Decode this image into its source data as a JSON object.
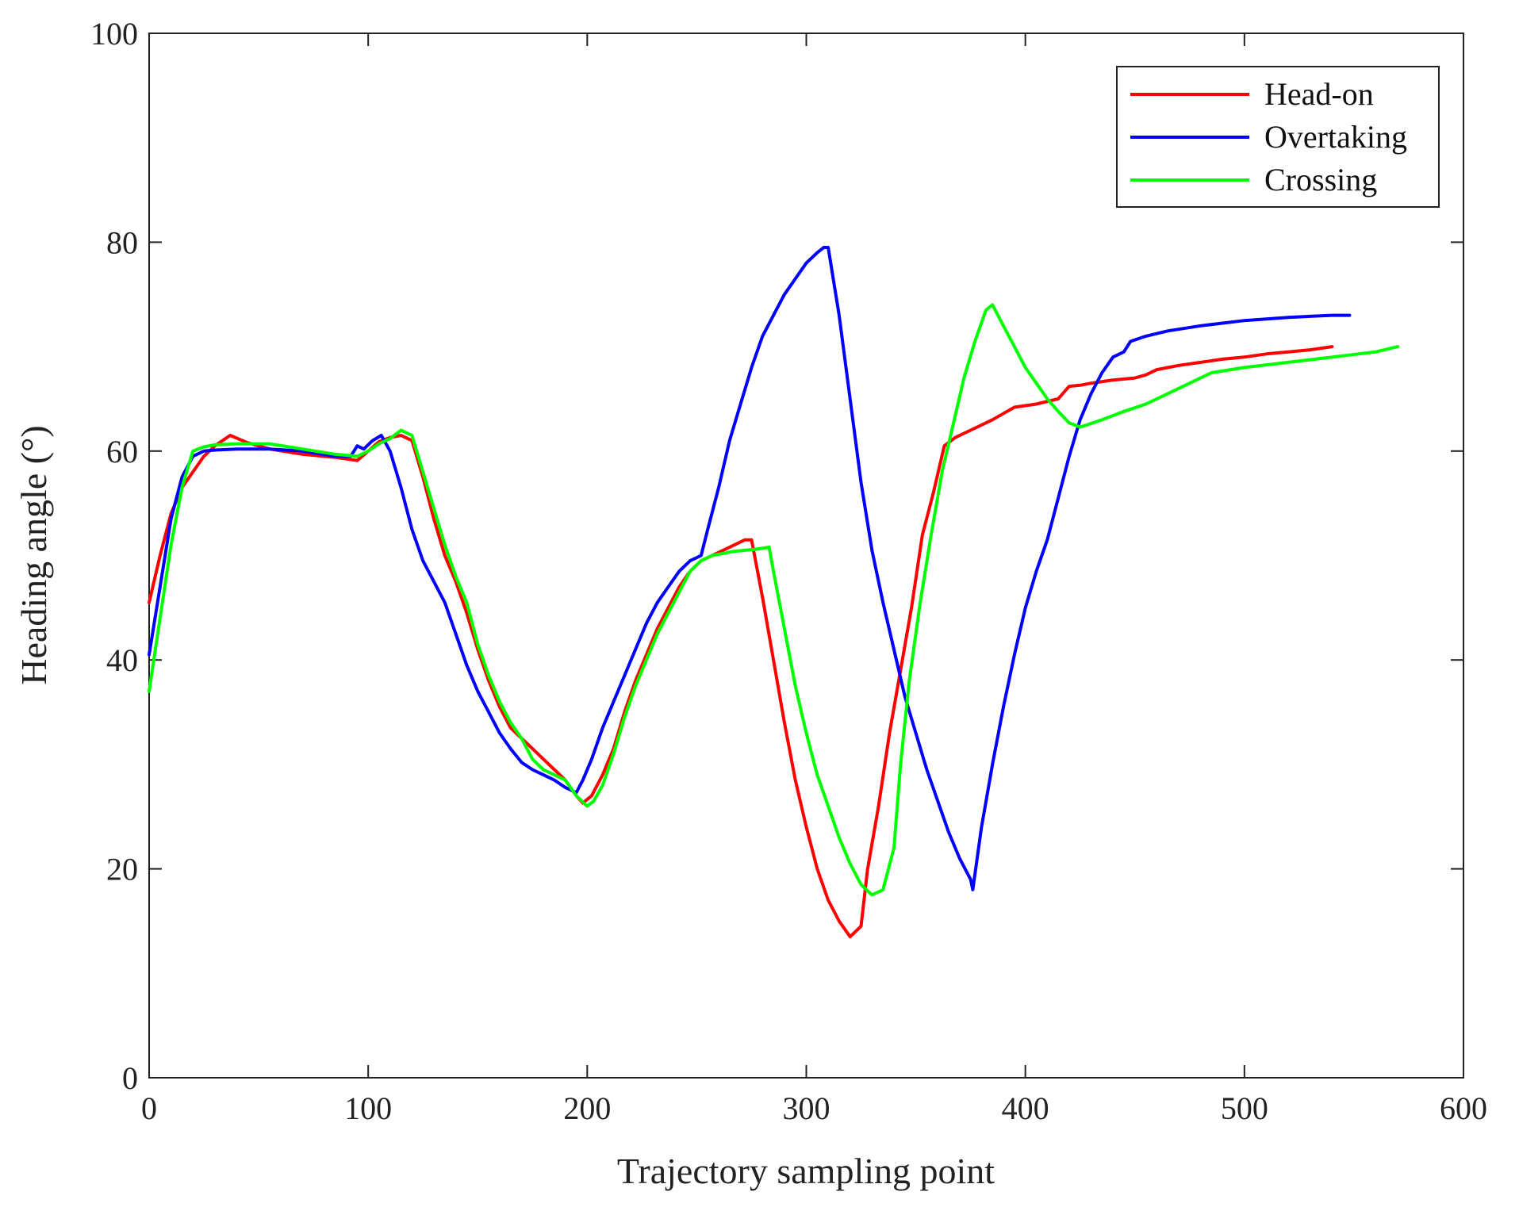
{
  "chart_data": {
    "type": "line",
    "title": "",
    "xlabel": "Trajectory sampling point",
    "ylabel": "Heading angle (°)",
    "xlim": [
      0,
      600
    ],
    "ylim": [
      0,
      100
    ],
    "xticks": [
      0,
      100,
      200,
      300,
      400,
      500,
      600
    ],
    "yticks": [
      0,
      20,
      40,
      60,
      80,
      100
    ],
    "xtick_labels": [
      "0",
      "100",
      "200",
      "300",
      "400",
      "500",
      "600"
    ],
    "ytick_labels": [
      "0",
      "20",
      "40",
      "60",
      "80",
      "100"
    ],
    "grid": false,
    "legend_position": "top-right",
    "series": [
      {
        "name": "Head-on",
        "color": "#ff0000",
        "x": [
          0,
          5,
          10,
          15,
          20,
          25,
          30,
          37,
          45,
          55,
          70,
          85,
          95,
          100,
          105,
          110,
          115,
          120,
          125,
          130,
          135,
          140,
          145,
          150,
          155,
          160,
          165,
          170,
          175,
          180,
          185,
          190,
          195,
          198,
          202,
          207,
          212,
          217,
          222,
          227,
          232,
          237,
          242,
          247,
          252,
          257,
          262,
          267,
          272,
          275,
          280,
          285,
          290,
          295,
          300,
          305,
          310,
          315,
          320,
          325,
          328,
          333,
          338,
          343,
          348,
          353,
          358,
          363,
          368,
          375,
          385,
          395,
          405,
          415,
          420,
          425,
          430,
          440,
          450,
          455,
          460,
          470,
          480,
          490,
          500,
          510,
          520,
          530,
          540
        ],
        "y": [
          45.5,
          50,
          54,
          56.5,
          58,
          59.5,
          60.5,
          61.5,
          60.8,
          60.2,
          59.7,
          59.4,
          59.1,
          60,
          60.9,
          61.3,
          61.5,
          61,
          57.5,
          53.5,
          50,
          47.5,
          44.5,
          41,
          38,
          35.5,
          33.5,
          32.5,
          31.5,
          30.5,
          29.5,
          28.5,
          27,
          26.3,
          27,
          29,
          31.5,
          35,
          38,
          40.5,
          43,
          45,
          47,
          48.5,
          49.5,
          50,
          50.5,
          51,
          51.5,
          51.5,
          46,
          40,
          34,
          28.5,
          24,
          20,
          17,
          15,
          13.5,
          14.5,
          20,
          26,
          33,
          39,
          45,
          52,
          56,
          60.5,
          61.3,
          62,
          63,
          64.2,
          64.5,
          65,
          66.2,
          66.3,
          66.5,
          66.8,
          67,
          67.3,
          67.8,
          68.2,
          68.5,
          68.8,
          69,
          69.3,
          69.5,
          69.7,
          70
        ]
      },
      {
        "name": "Overtaking",
        "color": "#0000ff",
        "x": [
          0,
          5,
          10,
          15,
          20,
          25,
          30,
          40,
          55,
          70,
          85,
          92,
          95,
          98,
          102,
          106,
          110,
          115,
          120,
          125,
          130,
          135,
          140,
          145,
          150,
          155,
          160,
          165,
          170,
          175,
          180,
          185,
          190,
          195,
          198,
          202,
          207,
          212,
          217,
          222,
          227,
          232,
          237,
          242,
          247,
          252,
          255,
          260,
          265,
          270,
          275,
          280,
          285,
          290,
          295,
          300,
          305,
          308,
          310,
          315,
          320,
          325,
          330,
          335,
          340,
          345,
          350,
          355,
          360,
          365,
          370,
          375,
          376,
          380,
          385,
          390,
          395,
          400,
          405,
          410,
          415,
          420,
          425,
          430,
          435,
          440,
          445,
          448,
          455,
          465,
          480,
          500,
          520,
          540,
          548
        ],
        "y": [
          40.5,
          47,
          53.5,
          57.5,
          59.5,
          60,
          60.1,
          60.2,
          60.2,
          60,
          59.5,
          59.5,
          60.5,
          60.2,
          61,
          61.5,
          60,
          56.5,
          52.5,
          49.5,
          47.5,
          45.5,
          42.5,
          39.5,
          37,
          35,
          33,
          31.5,
          30.2,
          29.5,
          29,
          28.5,
          27.8,
          27.3,
          28.5,
          30.5,
          33.5,
          36,
          38.5,
          41,
          43.5,
          45.5,
          47,
          48.5,
          49.5,
          50,
          52.5,
          56.5,
          61,
          64.5,
          68,
          71,
          73,
          75,
          76.5,
          78,
          79,
          79.5,
          79.5,
          73,
          65,
          57,
          50.5,
          45.5,
          41,
          36.5,
          33,
          29.5,
          26.5,
          23.5,
          21,
          19,
          18,
          24,
          30,
          35.5,
          40.5,
          45,
          48.5,
          51.5,
          55.5,
          59.5,
          63,
          65.5,
          67.5,
          69,
          69.5,
          70.5,
          71,
          71.5,
          72,
          72.5,
          72.8,
          73,
          73
        ]
      },
      {
        "name": "Crossing",
        "color": "#00ff00",
        "x": [
          0,
          5,
          10,
          15,
          20,
          25,
          30,
          40,
          55,
          70,
          85,
          95,
          100,
          105,
          110,
          115,
          120,
          125,
          130,
          135,
          140,
          145,
          150,
          155,
          160,
          165,
          170,
          175,
          180,
          185,
          190,
          195,
          200,
          203,
          207,
          212,
          217,
          222,
          227,
          232,
          237,
          242,
          247,
          252,
          257,
          262,
          267,
          272,
          277,
          283,
          285,
          290,
          295,
          300,
          305,
          310,
          315,
          320,
          325,
          330,
          335,
          340,
          343,
          347,
          352,
          357,
          362,
          367,
          372,
          377,
          382,
          385,
          390,
          395,
          400,
          405,
          410,
          415,
          420,
          425,
          428,
          435,
          445,
          455,
          465,
          475,
          485,
          500,
          520,
          540,
          560,
          570
        ],
        "y": [
          37,
          44,
          51,
          56.5,
          60,
          60.4,
          60.6,
          60.7,
          60.7,
          60.2,
          59.7,
          59.5,
          60,
          60.7,
          61.2,
          62,
          61.5,
          58,
          54.5,
          51,
          48,
          45.5,
          41.5,
          38.5,
          36,
          34,
          32.5,
          30.5,
          29.5,
          29,
          28.5,
          27,
          26,
          26.5,
          28,
          31,
          34.5,
          37.5,
          40,
          42.5,
          44.5,
          46.5,
          48.5,
          49.5,
          50,
          50.2,
          50.4,
          50.5,
          50.6,
          50.8,
          48.5,
          43,
          37.5,
          33,
          29,
          26,
          23,
          20.5,
          18.5,
          17.5,
          18,
          22,
          30,
          38,
          45.5,
          52,
          58,
          62.5,
          67,
          70.5,
          73.5,
          74,
          72,
          70,
          68,
          66.5,
          65,
          63.8,
          62.7,
          62.3,
          62.5,
          63,
          63.8,
          64.5,
          65.5,
          66.5,
          67.5,
          68,
          68.5,
          69,
          69.5,
          70
        ]
      }
    ]
  }
}
